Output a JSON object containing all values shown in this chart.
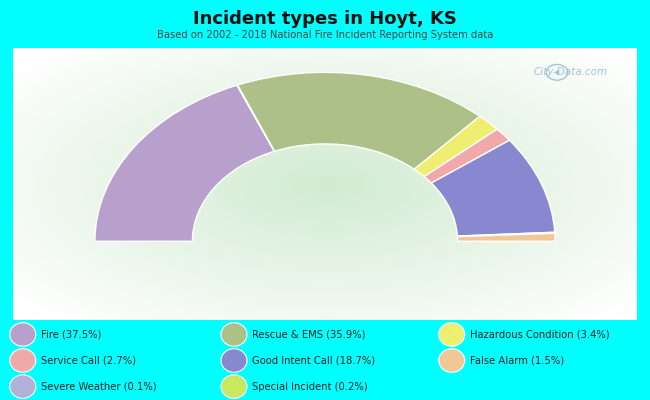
{
  "title": "Incident types in Hoyt, KS",
  "subtitle": "Based on 2002 - 2018 National Fire Incident Reporting System data",
  "background_color": "#00FFFF",
  "chart_bg": "#deeedd",
  "segments": [
    {
      "label": "Fire",
      "pct": 37.5,
      "color": "#b8a0cc"
    },
    {
      "label": "Severe Weather",
      "pct": 0.1,
      "color": "#b8a0cc"
    },
    {
      "label": "Rescue & EMS",
      "pct": 35.9,
      "color": "#adc088"
    },
    {
      "label": "Hazardous Condition",
      "pct": 3.4,
      "color": "#f0ee70"
    },
    {
      "label": "Service Call",
      "pct": 2.7,
      "color": "#f0a8a8"
    },
    {
      "label": "Good Intent Call",
      "pct": 18.7,
      "color": "#8888d0"
    },
    {
      "label": "Special Incident",
      "pct": 0.2,
      "color": "#c8e860"
    },
    {
      "label": "False Alarm",
      "pct": 1.5,
      "color": "#f0c898"
    }
  ],
  "legend_col1": [
    {
      "label": "Fire (37.5%)",
      "color": "#b8a0cc"
    },
    {
      "label": "Service Call (2.7%)",
      "color": "#f0a8a8"
    },
    {
      "label": "Severe Weather (0.1%)",
      "color": "#b0b0d8"
    }
  ],
  "legend_col2": [
    {
      "label": "Rescue & EMS (35.9%)",
      "color": "#adc088"
    },
    {
      "label": "Good Intent Call (18.7%)",
      "color": "#8888d0"
    },
    {
      "label": "Special Incident (0.2%)",
      "color": "#c8e860"
    }
  ],
  "legend_col3": [
    {
      "label": "Hazardous Condition (3.4%)",
      "color": "#f0ee70"
    },
    {
      "label": "False Alarm (1.5%)",
      "color": "#f0c898"
    }
  ],
  "watermark": "City-Data.com"
}
